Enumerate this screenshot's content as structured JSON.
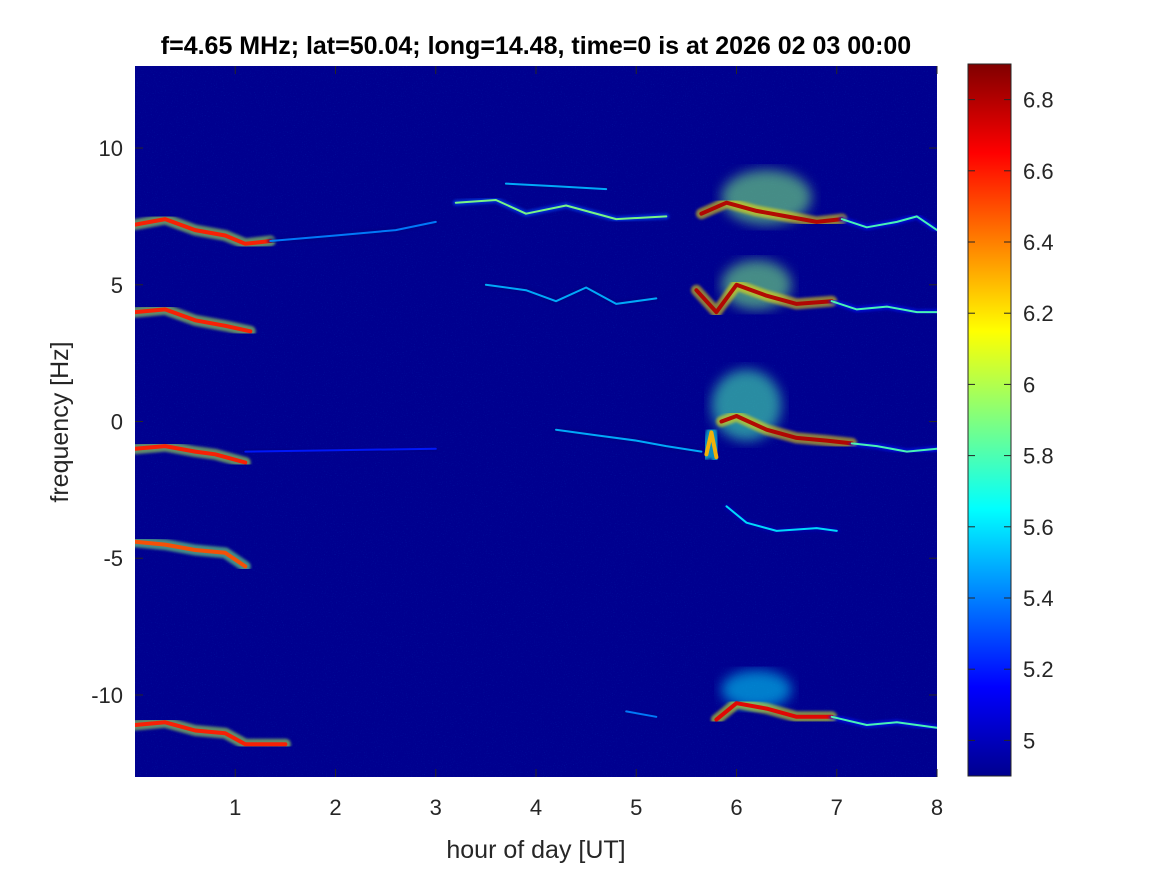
{
  "chart_data": {
    "type": "heatmap",
    "title": "f=4.65 MHz;  lat=50.04; long=14.48, time=0 is at 2026 02 03 00:00",
    "xlabel": "hour of day [UT]",
    "ylabel": "frequency [Hz]",
    "xlim": [
      0,
      8
    ],
    "ylim": [
      -13,
      13
    ],
    "x_ticks": [
      1,
      2,
      3,
      4,
      5,
      6,
      7,
      8
    ],
    "y_ticks": [
      10,
      5,
      0,
      -5,
      -10
    ],
    "colormap": "jet",
    "colorbar": {
      "range": [
        4.9,
        6.9
      ],
      "ticks": [
        6.8,
        6.6,
        6.4,
        6.2,
        6,
        5.8,
        5.6,
        5.4,
        5.2,
        5
      ]
    },
    "background_value": 4.95,
    "background_color": "#00008f",
    "traces": [
      {
        "points": [
          [
            0.0,
            7.2
          ],
          [
            0.3,
            7.4
          ],
          [
            0.6,
            7.0
          ],
          [
            0.9,
            6.8
          ],
          [
            1.1,
            6.5
          ],
          [
            1.35,
            6.6
          ]
        ],
        "level": 6.6
      },
      {
        "points": [
          [
            1.35,
            6.6
          ],
          [
            2.0,
            6.8
          ],
          [
            2.6,
            7.0
          ],
          [
            3.0,
            7.3
          ]
        ],
        "level": 5.4
      },
      {
        "points": [
          [
            3.2,
            8.0
          ],
          [
            3.6,
            8.1
          ],
          [
            3.9,
            7.6
          ],
          [
            4.3,
            7.9
          ],
          [
            4.8,
            7.4
          ],
          [
            5.3,
            7.5
          ]
        ],
        "level": 5.9
      },
      {
        "points": [
          [
            3.7,
            8.7
          ],
          [
            4.2,
            8.6
          ],
          [
            4.7,
            8.5
          ]
        ],
        "level": 5.5
      },
      {
        "points": [
          [
            5.65,
            7.6
          ],
          [
            5.9,
            8.0
          ],
          [
            6.2,
            7.7
          ],
          [
            6.5,
            7.5
          ],
          [
            6.8,
            7.3
          ],
          [
            7.05,
            7.4
          ]
        ],
        "level": 6.8
      },
      {
        "points": [
          [
            7.05,
            7.4
          ],
          [
            7.3,
            7.1
          ],
          [
            7.6,
            7.3
          ],
          [
            7.8,
            7.5
          ],
          [
            8.0,
            7.0
          ]
        ],
        "level": 5.8
      },
      {
        "points": [
          [
            0.0,
            4.0
          ],
          [
            0.3,
            4.1
          ],
          [
            0.6,
            3.7
          ],
          [
            0.9,
            3.5
          ],
          [
            1.15,
            3.3
          ]
        ],
        "level": 6.6
      },
      {
        "points": [
          [
            3.5,
            5.0
          ],
          [
            3.9,
            4.8
          ],
          [
            4.2,
            4.4
          ],
          [
            4.5,
            4.9
          ],
          [
            4.8,
            4.3
          ],
          [
            5.2,
            4.5
          ]
        ],
        "level": 5.5
      },
      {
        "points": [
          [
            5.6,
            4.8
          ],
          [
            5.8,
            4.0
          ],
          [
            6.0,
            5.0
          ],
          [
            6.3,
            4.6
          ],
          [
            6.6,
            4.3
          ],
          [
            6.95,
            4.4
          ]
        ],
        "level": 6.8
      },
      {
        "points": [
          [
            6.95,
            4.4
          ],
          [
            7.2,
            4.1
          ],
          [
            7.5,
            4.2
          ],
          [
            7.8,
            4.0
          ],
          [
            8.0,
            4.0
          ]
        ],
        "level": 5.8
      },
      {
        "points": [
          [
            0.0,
            -1.0
          ],
          [
            0.3,
            -0.9
          ],
          [
            0.6,
            -1.1
          ],
          [
            0.8,
            -1.2
          ],
          [
            1.1,
            -1.5
          ]
        ],
        "level": 6.6
      },
      {
        "points": [
          [
            1.1,
            -1.1
          ],
          [
            2.0,
            -1.05
          ],
          [
            3.0,
            -1.0
          ]
        ],
        "level": 5.2
      },
      {
        "points": [
          [
            4.2,
            -0.3
          ],
          [
            4.6,
            -0.5
          ],
          [
            5.0,
            -0.7
          ],
          [
            5.3,
            -0.9
          ],
          [
            5.65,
            -1.1
          ]
        ],
        "level": 5.5
      },
      {
        "points": [
          [
            5.7,
            -1.2
          ],
          [
            5.75,
            -0.4
          ],
          [
            5.8,
            -1.3
          ]
        ],
        "level": 6.3
      },
      {
        "points": [
          [
            5.85,
            0.0
          ],
          [
            6.0,
            0.2
          ],
          [
            6.3,
            -0.3
          ],
          [
            6.6,
            -0.6
          ],
          [
            6.9,
            -0.7
          ],
          [
            7.15,
            -0.8
          ]
        ],
        "level": 6.8
      },
      {
        "points": [
          [
            7.15,
            -0.8
          ],
          [
            7.4,
            -0.9
          ],
          [
            7.7,
            -1.1
          ],
          [
            8.0,
            -1.0
          ]
        ],
        "level": 5.8
      },
      {
        "points": [
          [
            0.0,
            -4.4
          ],
          [
            0.3,
            -4.5
          ],
          [
            0.6,
            -4.7
          ],
          [
            0.9,
            -4.8
          ],
          [
            1.1,
            -5.3
          ]
        ],
        "level": 6.5
      },
      {
        "points": [
          [
            5.9,
            -3.1
          ],
          [
            6.1,
            -3.7
          ],
          [
            6.4,
            -4.0
          ],
          [
            6.8,
            -3.9
          ],
          [
            7.0,
            -4.0
          ]
        ],
        "level": 5.6
      },
      {
        "points": [
          [
            0.0,
            -11.1
          ],
          [
            0.3,
            -11.0
          ],
          [
            0.6,
            -11.3
          ],
          [
            0.9,
            -11.4
          ],
          [
            1.1,
            -11.8
          ],
          [
            1.5,
            -11.8
          ]
        ],
        "level": 6.6
      },
      {
        "points": [
          [
            5.8,
            -10.9
          ],
          [
            6.0,
            -10.3
          ],
          [
            6.3,
            -10.5
          ],
          [
            6.6,
            -10.8
          ],
          [
            6.95,
            -10.8
          ]
        ],
        "level": 6.7
      },
      {
        "points": [
          [
            6.95,
            -10.8
          ],
          [
            7.3,
            -11.1
          ],
          [
            7.6,
            -11.0
          ],
          [
            8.0,
            -11.2
          ]
        ],
        "level": 5.8
      },
      {
        "points": [
          [
            4.9,
            -10.6
          ],
          [
            5.2,
            -10.8
          ]
        ],
        "level": 5.4
      }
    ],
    "blobs": [
      {
        "x": 6.3,
        "y": 8.2,
        "rx": 0.45,
        "ry": 1.0,
        "level": 5.9
      },
      {
        "x": 6.2,
        "y": 5.0,
        "rx": 0.35,
        "ry": 0.9,
        "level": 5.9
      },
      {
        "x": 6.1,
        "y": 0.6,
        "rx": 0.35,
        "ry": 1.3,
        "level": 5.8
      },
      {
        "x": 6.2,
        "y": -9.8,
        "rx": 0.35,
        "ry": 0.7,
        "level": 5.6
      }
    ]
  }
}
